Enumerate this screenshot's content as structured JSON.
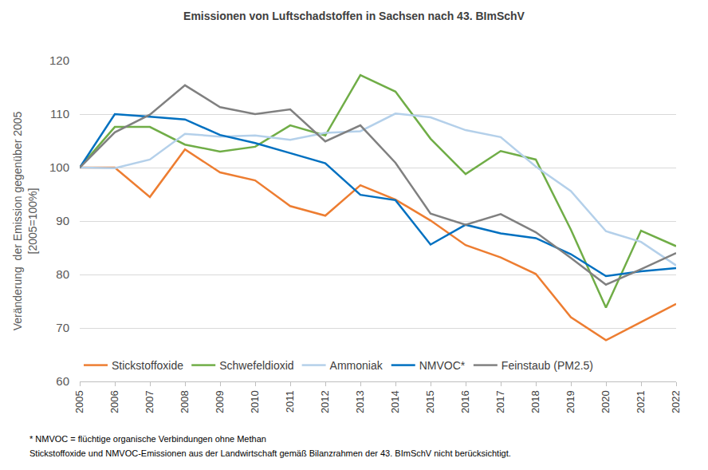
{
  "chart_data": {
    "type": "line",
    "title": "Emissionen von Luftschadstoffen in Sachsen nach 43. BImSchV",
    "y_label": "Veränderung  der Emission gegenüber 2005\n[2005=100%]",
    "categories": [
      "2005",
      "2006",
      "2007",
      "2008",
      "2009",
      "2010",
      "2011",
      "2012",
      "2013",
      "2014",
      "2015",
      "2016",
      "2017",
      "2018",
      "2019",
      "2020",
      "2021",
      "2022"
    ],
    "series": [
      {
        "name": "Stickstoffoxide",
        "color": "#ED7D31",
        "values": [
          100,
          100,
          94.5,
          103.4,
          99.1,
          97.6,
          92.8,
          91.0,
          96.7,
          94.0,
          90.1,
          85.5,
          83.2,
          80.1,
          72.0,
          67.7,
          71.1,
          74.5
        ]
      },
      {
        "name": "Schwefeldioxid",
        "color": "#70AD47",
        "values": [
          100,
          107.6,
          107.6,
          104.3,
          103.0,
          103.9,
          107.9,
          106.0,
          117.3,
          114.2,
          105.4,
          98.8,
          103.1,
          101.5,
          88.4,
          73.8,
          88.2,
          85.3
        ]
      },
      {
        "name": "Ammoniak",
        "color": "#B4D0EA",
        "values": [
          100,
          99.9,
          101.5,
          106.3,
          105.8,
          106.0,
          105.2,
          106.5,
          106.8,
          110.1,
          109.4,
          107.0,
          105.7,
          100.2,
          95.6,
          88.1,
          86.1,
          81.7
        ]
      },
      {
        "name": "NMVOC*",
        "color": "#0070C0",
        "values": [
          100,
          110.0,
          109.5,
          109.0,
          106.1,
          104.6,
          102.7,
          100.8,
          94.9,
          93.9,
          85.6,
          89.3,
          87.7,
          86.8,
          83.8,
          79.7,
          80.6,
          81.2
        ]
      },
      {
        "name": "Feinstaub (PM2.5)",
        "color": "#808080",
        "values": [
          100,
          106.6,
          109.9,
          115.4,
          111.3,
          110.0,
          110.9,
          104.9,
          107.9,
          100.9,
          91.4,
          89.3,
          91.3,
          87.9,
          83.1,
          78.1,
          81.0,
          84.0
        ]
      }
    ],
    "ylim": [
      60,
      120
    ],
    "yticks": [
      60,
      70,
      80,
      90,
      100,
      110,
      120
    ],
    "grid": true,
    "legend": "bottom",
    "annotations": [
      "* NMVOC = flüchtige organische Verbindungen ohne Methan",
      "Stickstoffoxide und NMVOC-Emissionen aus der Landwirtschaft gemäß Bilanzrahmen der 43. BImSchV nicht berücksichtigt."
    ]
  }
}
